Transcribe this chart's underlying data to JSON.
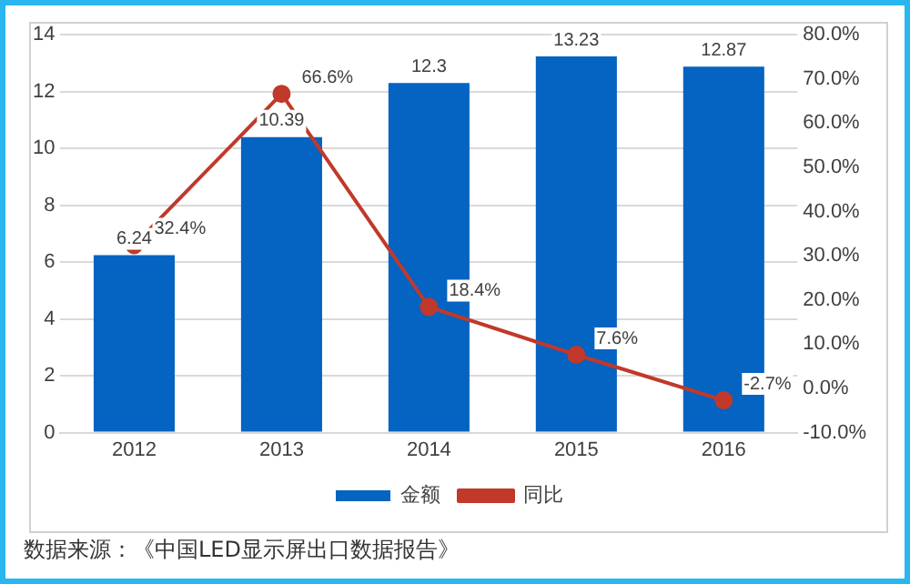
{
  "chart_data": {
    "type": "bar",
    "categories": [
      "2012",
      "2013",
      "2014",
      "2015",
      "2016"
    ],
    "series": [
      {
        "name": "金额",
        "color": "#0563c1",
        "values": [
          6.24,
          10.39,
          12.3,
          13.23,
          12.87
        ],
        "value_labels": [
          "6.24",
          "10.39",
          "12.3",
          "13.23",
          "12.87"
        ]
      },
      {
        "name": "同比",
        "type": "line",
        "axis": "y2",
        "color": "#c0392b",
        "values": [
          32.4,
          66.6,
          18.4,
          7.6,
          -2.7
        ],
        "value_labels": [
          "32.4%",
          "66.6%",
          "18.4%",
          "7.6%",
          "-2.7%"
        ]
      }
    ],
    "ylim": [
      0,
      14
    ],
    "yticks": [
      0,
      2,
      4,
      6,
      8,
      10,
      12,
      14
    ],
    "y2lim": [
      -10,
      80
    ],
    "y2ticks": [
      {
        "value": -10,
        "label": "-10.0%"
      },
      {
        "value": 0,
        "label": "0.0%"
      },
      {
        "value": 10,
        "label": "10.0%"
      },
      {
        "value": 20,
        "label": "20.0%"
      },
      {
        "value": 30,
        "label": "30.0%"
      },
      {
        "value": 40,
        "label": "40.0%"
      },
      {
        "value": 50,
        "label": "50.0%"
      },
      {
        "value": 60,
        "label": "60.0%"
      },
      {
        "value": 70,
        "label": "70.0%"
      },
      {
        "value": 80,
        "label": "80.0%"
      }
    ],
    "grid": "y",
    "legend": "bottom",
    "marker": "circle",
    "line_style": "solid",
    "annotations": [
      "数据来源：《中国LED显示屏出口数据报告》"
    ]
  }
}
